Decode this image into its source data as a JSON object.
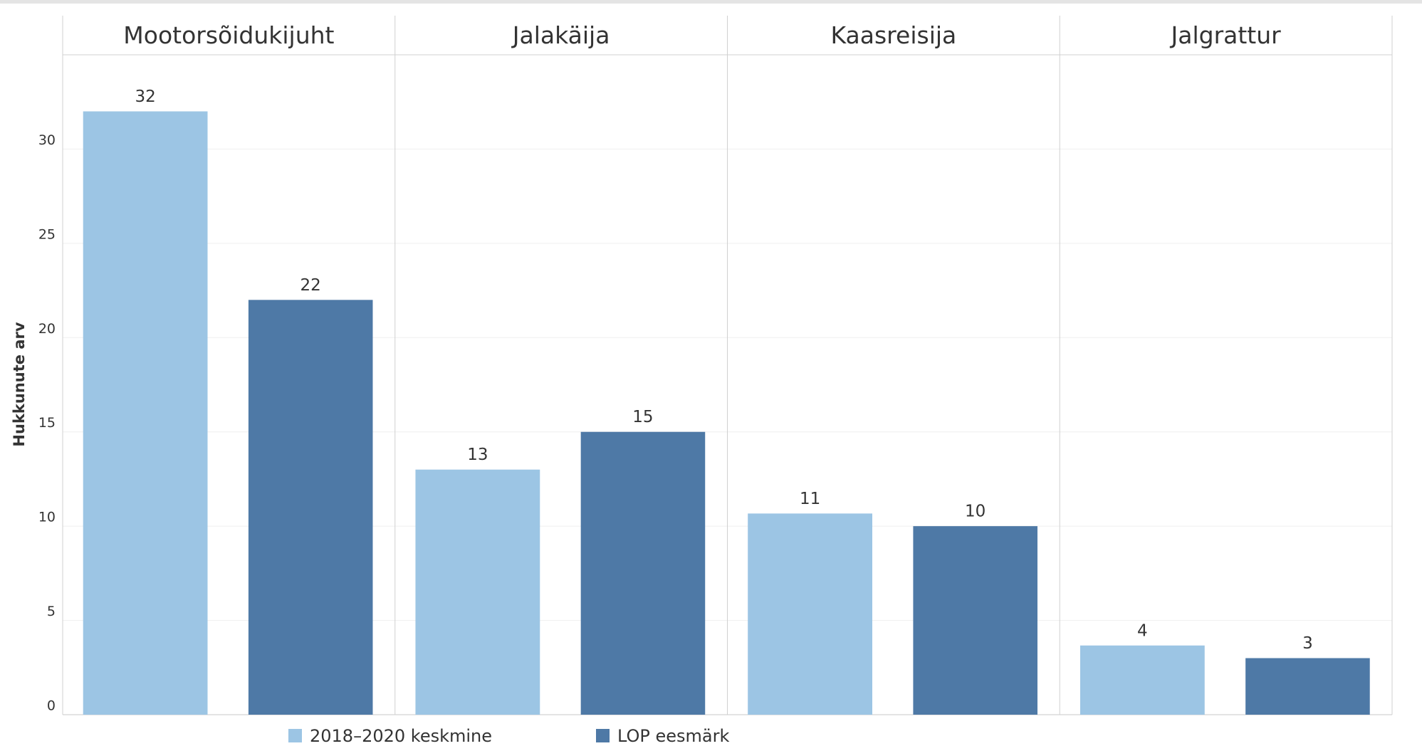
{
  "chart_data": {
    "type": "bar",
    "y_label": "Hukkunute arv",
    "categories": [
      "Mootorsõidukijuht",
      "Jalakäija",
      "Kaasreisija",
      "Jalgrattur"
    ],
    "series": [
      {
        "name": "2018–2020 keskmine",
        "color": "#9cc5e4",
        "values": [
          32,
          13,
          10.67,
          3.67
        ],
        "value_labels": [
          "32",
          "13",
          "11",
          "4"
        ]
      },
      {
        "name": "LOP eesmärk",
        "color": "#4e79a6",
        "values": [
          22,
          15,
          10,
          3
        ]
      }
    ],
    "ylim": [
      0,
      35
    ],
    "yticks": [
      0,
      5,
      10,
      15,
      20,
      25,
      30
    ],
    "grid": true
  }
}
